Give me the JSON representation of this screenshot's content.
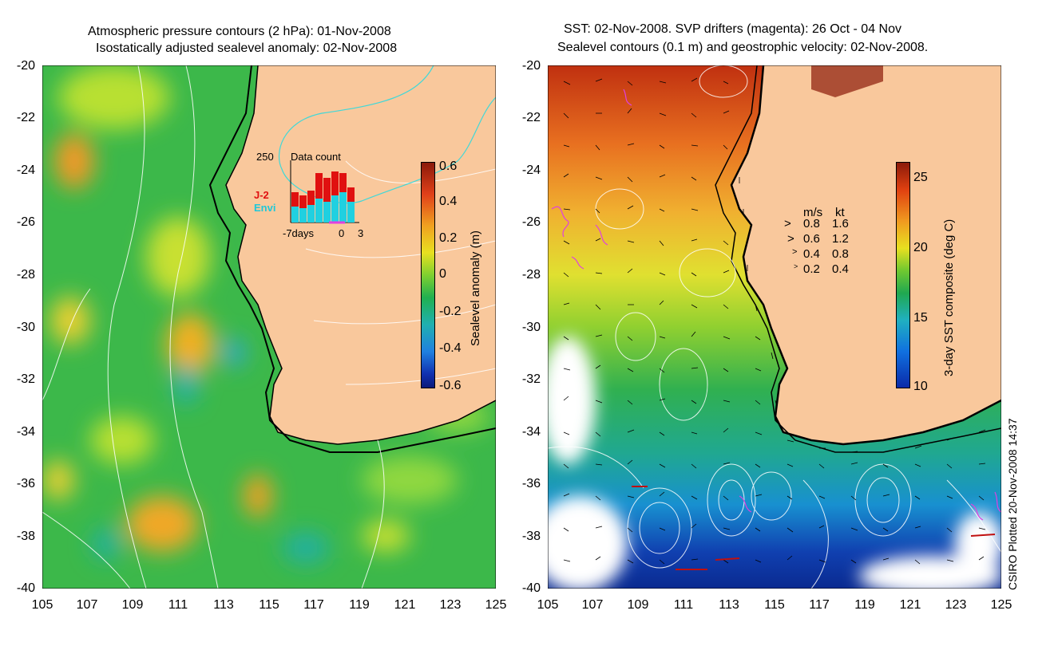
{
  "left": {
    "title_line1": "Atmospheric pressure contours (2 hPa): 01-Nov-2008",
    "title_line2": "Isostatically adjusted sealevel anomaly: 02-Nov-2008",
    "colorbar_label": "Sealevel anomaly (m)",
    "colorbar_ticks": [
      "0.6",
      "0.4",
      "0.2",
      "0",
      "-0.2",
      "-0.4",
      "-0.6"
    ],
    "colorbar_colors": [
      "#8b1a0a",
      "#e0401a",
      "#f0a020",
      "#e8e020",
      "#7fd030",
      "#20b050",
      "#20b0b0",
      "#2080e0",
      "#1030b0",
      "#0a1a7a"
    ],
    "inset": {
      "max_label": "250",
      "title": "Data count",
      "series1": "J-2",
      "series2": "Envi",
      "x_left": "-7days",
      "x_mid": "0",
      "x_right": "3"
    }
  },
  "right": {
    "title_line1": "SST: 02-Nov-2008. SVP drifters (magenta): 26 Oct - 04 Nov",
    "title_line2": "Sealevel contours (0.1 m) and geostrophic velocity: 02-Nov-2008.",
    "colorbar_label": "3-day SST composite (deg C)",
    "colorbar_ticks": [
      "25",
      "20",
      "15",
      "10"
    ],
    "colorbar_colors": [
      "#8b1a0a",
      "#e04010",
      "#f09a20",
      "#e8e020",
      "#70c830",
      "#20a850",
      "#20b0c0",
      "#1070e0",
      "#0a2aa8"
    ],
    "legend_header_ms": "m/s",
    "legend_header_kt": "kt",
    "legend_rows": [
      {
        "ms": "0.8",
        "kt": "1.6"
      },
      {
        "ms": "0.6",
        "kt": "1.2"
      },
      {
        "ms": "0.4",
        "kt": "0.8"
      },
      {
        "ms": "0.2",
        "kt": "0.4"
      }
    ]
  },
  "y_ticks": [
    "-20",
    "-22",
    "-24",
    "-26",
    "-28",
    "-30",
    "-32",
    "-34",
    "-36",
    "-38",
    "-40"
  ],
  "x_ticks": [
    "105",
    "107",
    "109",
    "111",
    "113",
    "115",
    "117",
    "119",
    "121",
    "123",
    "125"
  ],
  "footer": "CSIRO Plotted 20-Nov-2008 14:37",
  "colors": {
    "land": "#f9c89c",
    "ocean_mid": "#3cb84a",
    "coast": "#000000",
    "contour": "#ffffff",
    "drifter": "#e040e0"
  }
}
